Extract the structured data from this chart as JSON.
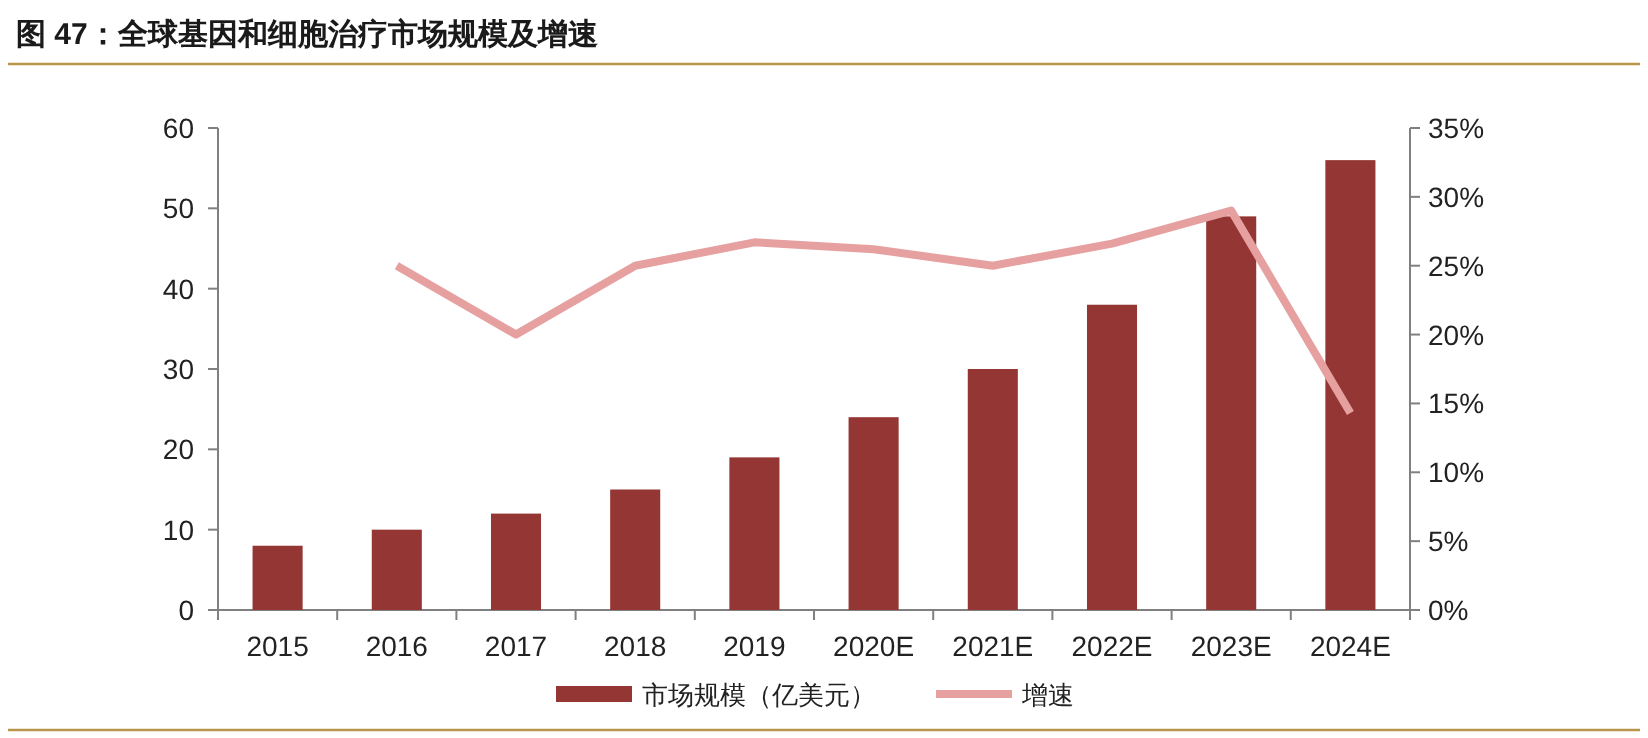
{
  "chart_data": {
    "type": "bar",
    "title": "图 47：全球基因和细胞治疗市场规模及增速",
    "categories": [
      "2015",
      "2016",
      "2017",
      "2018",
      "2019",
      "2020E",
      "2021E",
      "2022E",
      "2023E",
      "2024E"
    ],
    "series": [
      {
        "name": "市场规模（亿美元）",
        "color": "#943634",
        "values": [
          8,
          10,
          12,
          15,
          19,
          24,
          30,
          38,
          49,
          56
        ]
      },
      {
        "name": "增速",
        "type": "line",
        "axis": "y2",
        "color": "#e6a0a0",
        "values": [
          null,
          25,
          20,
          25,
          26.7,
          26.2,
          25,
          26.6,
          29,
          14.3
        ]
      }
    ],
    "ylim": [
      0,
      60
    ],
    "yticks": [
      0,
      10,
      20,
      30,
      40,
      50,
      60
    ],
    "y2lim": [
      0,
      35
    ],
    "y2ticks": [
      {
        "value": 0,
        "label": "0%"
      },
      {
        "value": 5,
        "label": "5%"
      },
      {
        "value": 10,
        "label": "10%"
      },
      {
        "value": 15,
        "label": "15%"
      },
      {
        "value": 20,
        "label": "20%"
      },
      {
        "value": 25,
        "label": "25%"
      },
      {
        "value": 30,
        "label": "30%"
      },
      {
        "value": 35,
        "label": "35%"
      }
    ],
    "grid": false,
    "legend": "bottom"
  }
}
